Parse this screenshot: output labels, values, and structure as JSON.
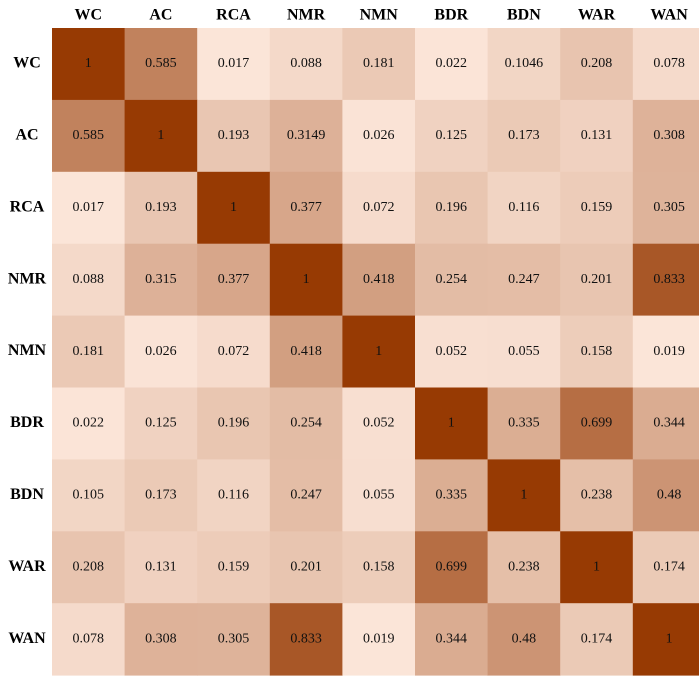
{
  "chart_data": {
    "type": "heatmap",
    "title": "",
    "xlabel": "",
    "ylabel": "",
    "columns": [
      "WC",
      "AC",
      "RCA",
      "NMR",
      "NMN",
      "BDR",
      "BDN",
      "WAR",
      "WAN"
    ],
    "rows": [
      "WC",
      "AC",
      "RCA",
      "NMR",
      "NMN",
      "BDR",
      "BDN",
      "WAR",
      "WAN"
    ],
    "value_range": [
      0,
      1
    ],
    "color_scale": {
      "low": "#fde8dc",
      "high": "#973a03"
    },
    "labels": [
      [
        "1",
        "0.585",
        "0.017",
        "0.088",
        "0.181",
        "0.022",
        "0.1046",
        "0.208",
        "0.078"
      ],
      [
        "0.585",
        "1",
        "0.193",
        "0.3149",
        "0.026",
        "0.125",
        "0.173",
        "0.131",
        "0.308"
      ],
      [
        "0.017",
        "0.193",
        "1",
        "0.377",
        "0.072",
        "0.196",
        "0.116",
        "0.159",
        "0.305"
      ],
      [
        "0.088",
        "0.315",
        "0.377",
        "1",
        "0.418",
        "0.254",
        "0.247",
        "0.201",
        "0.833"
      ],
      [
        "0.181",
        "0.026",
        "0.072",
        "0.418",
        "1",
        "0.052",
        "0.055",
        "0.158",
        "0.019"
      ],
      [
        "0.022",
        "0.125",
        "0.196",
        "0.254",
        "0.052",
        "1",
        "0.335",
        "0.699",
        "0.344"
      ],
      [
        "0.105",
        "0.173",
        "0.116",
        "0.247",
        "0.055",
        "0.335",
        "1",
        "0.238",
        "0.48"
      ],
      [
        "0.208",
        "0.131",
        "0.159",
        "0.201",
        "0.158",
        "0.699",
        "0.238",
        "1",
        "0.174"
      ],
      [
        "0.078",
        "0.308",
        "0.305",
        "0.833",
        "0.019",
        "0.344",
        "0.48",
        "0.174",
        "1"
      ]
    ]
  }
}
